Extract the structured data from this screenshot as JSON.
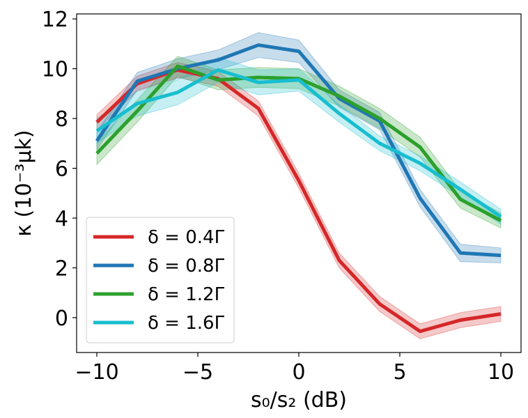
{
  "chart_data": {
    "type": "line",
    "title": "",
    "xlabel": "s₀/s₂ (dB)",
    "ylabel": "κ (10⁻³μk)",
    "xlim": [
      -11,
      11
    ],
    "ylim": [
      -1.4,
      12.2
    ],
    "xticks": [
      -10,
      -5,
      0,
      5,
      10
    ],
    "yticks": [
      0,
      2,
      4,
      6,
      8,
      10,
      12
    ],
    "xtick_labels": [
      "−10",
      "−5",
      "0",
      "5",
      "10"
    ],
    "ytick_labels": [
      "0",
      "2",
      "4",
      "6",
      "8",
      "10",
      "12"
    ],
    "x": [
      -10,
      -8,
      -6,
      -4,
      -2,
      0,
      2,
      4,
      6,
      8,
      10
    ],
    "legend_position": "lower-left",
    "series": [
      {
        "name": "δ = 0.4Γ",
        "color": "#d62728",
        "values": [
          7.85,
          9.4,
          9.95,
          9.6,
          8.4,
          5.5,
          2.3,
          0.55,
          -0.55,
          -0.1,
          0.15
        ],
        "band": [
          0.3,
          0.3,
          0.3,
          0.3,
          0.3,
          0.3,
          0.3,
          0.3,
          0.3,
          0.3,
          0.3
        ]
      },
      {
        "name": "δ = 0.8Γ",
        "color": "#1f77b4",
        "values": [
          7.1,
          9.5,
          10.0,
          10.35,
          10.95,
          10.7,
          8.8,
          7.9,
          4.8,
          2.6,
          2.5
        ],
        "band": [
          0.35,
          0.35,
          0.4,
          0.4,
          0.5,
          0.45,
          0.35,
          0.35,
          0.35,
          0.35,
          0.3
        ]
      },
      {
        "name": "δ = 1.2Γ",
        "color": "#2ca02c",
        "values": [
          6.6,
          8.3,
          10.1,
          9.55,
          9.65,
          9.6,
          8.9,
          8.0,
          6.85,
          4.75,
          3.9
        ],
        "band": [
          0.45,
          0.45,
          0.4,
          0.4,
          0.4,
          0.4,
          0.4,
          0.4,
          0.4,
          0.35,
          0.3
        ]
      },
      {
        "name": "δ = 1.6Γ",
        "color": "#17becf",
        "values": [
          7.5,
          8.6,
          9.05,
          9.95,
          9.45,
          9.55,
          8.2,
          7.0,
          6.2,
          5.15,
          4.05
        ],
        "band": [
          0.5,
          0.5,
          0.5,
          0.5,
          0.5,
          0.45,
          0.35,
          0.3,
          0.3,
          0.3,
          0.3
        ]
      }
    ]
  }
}
